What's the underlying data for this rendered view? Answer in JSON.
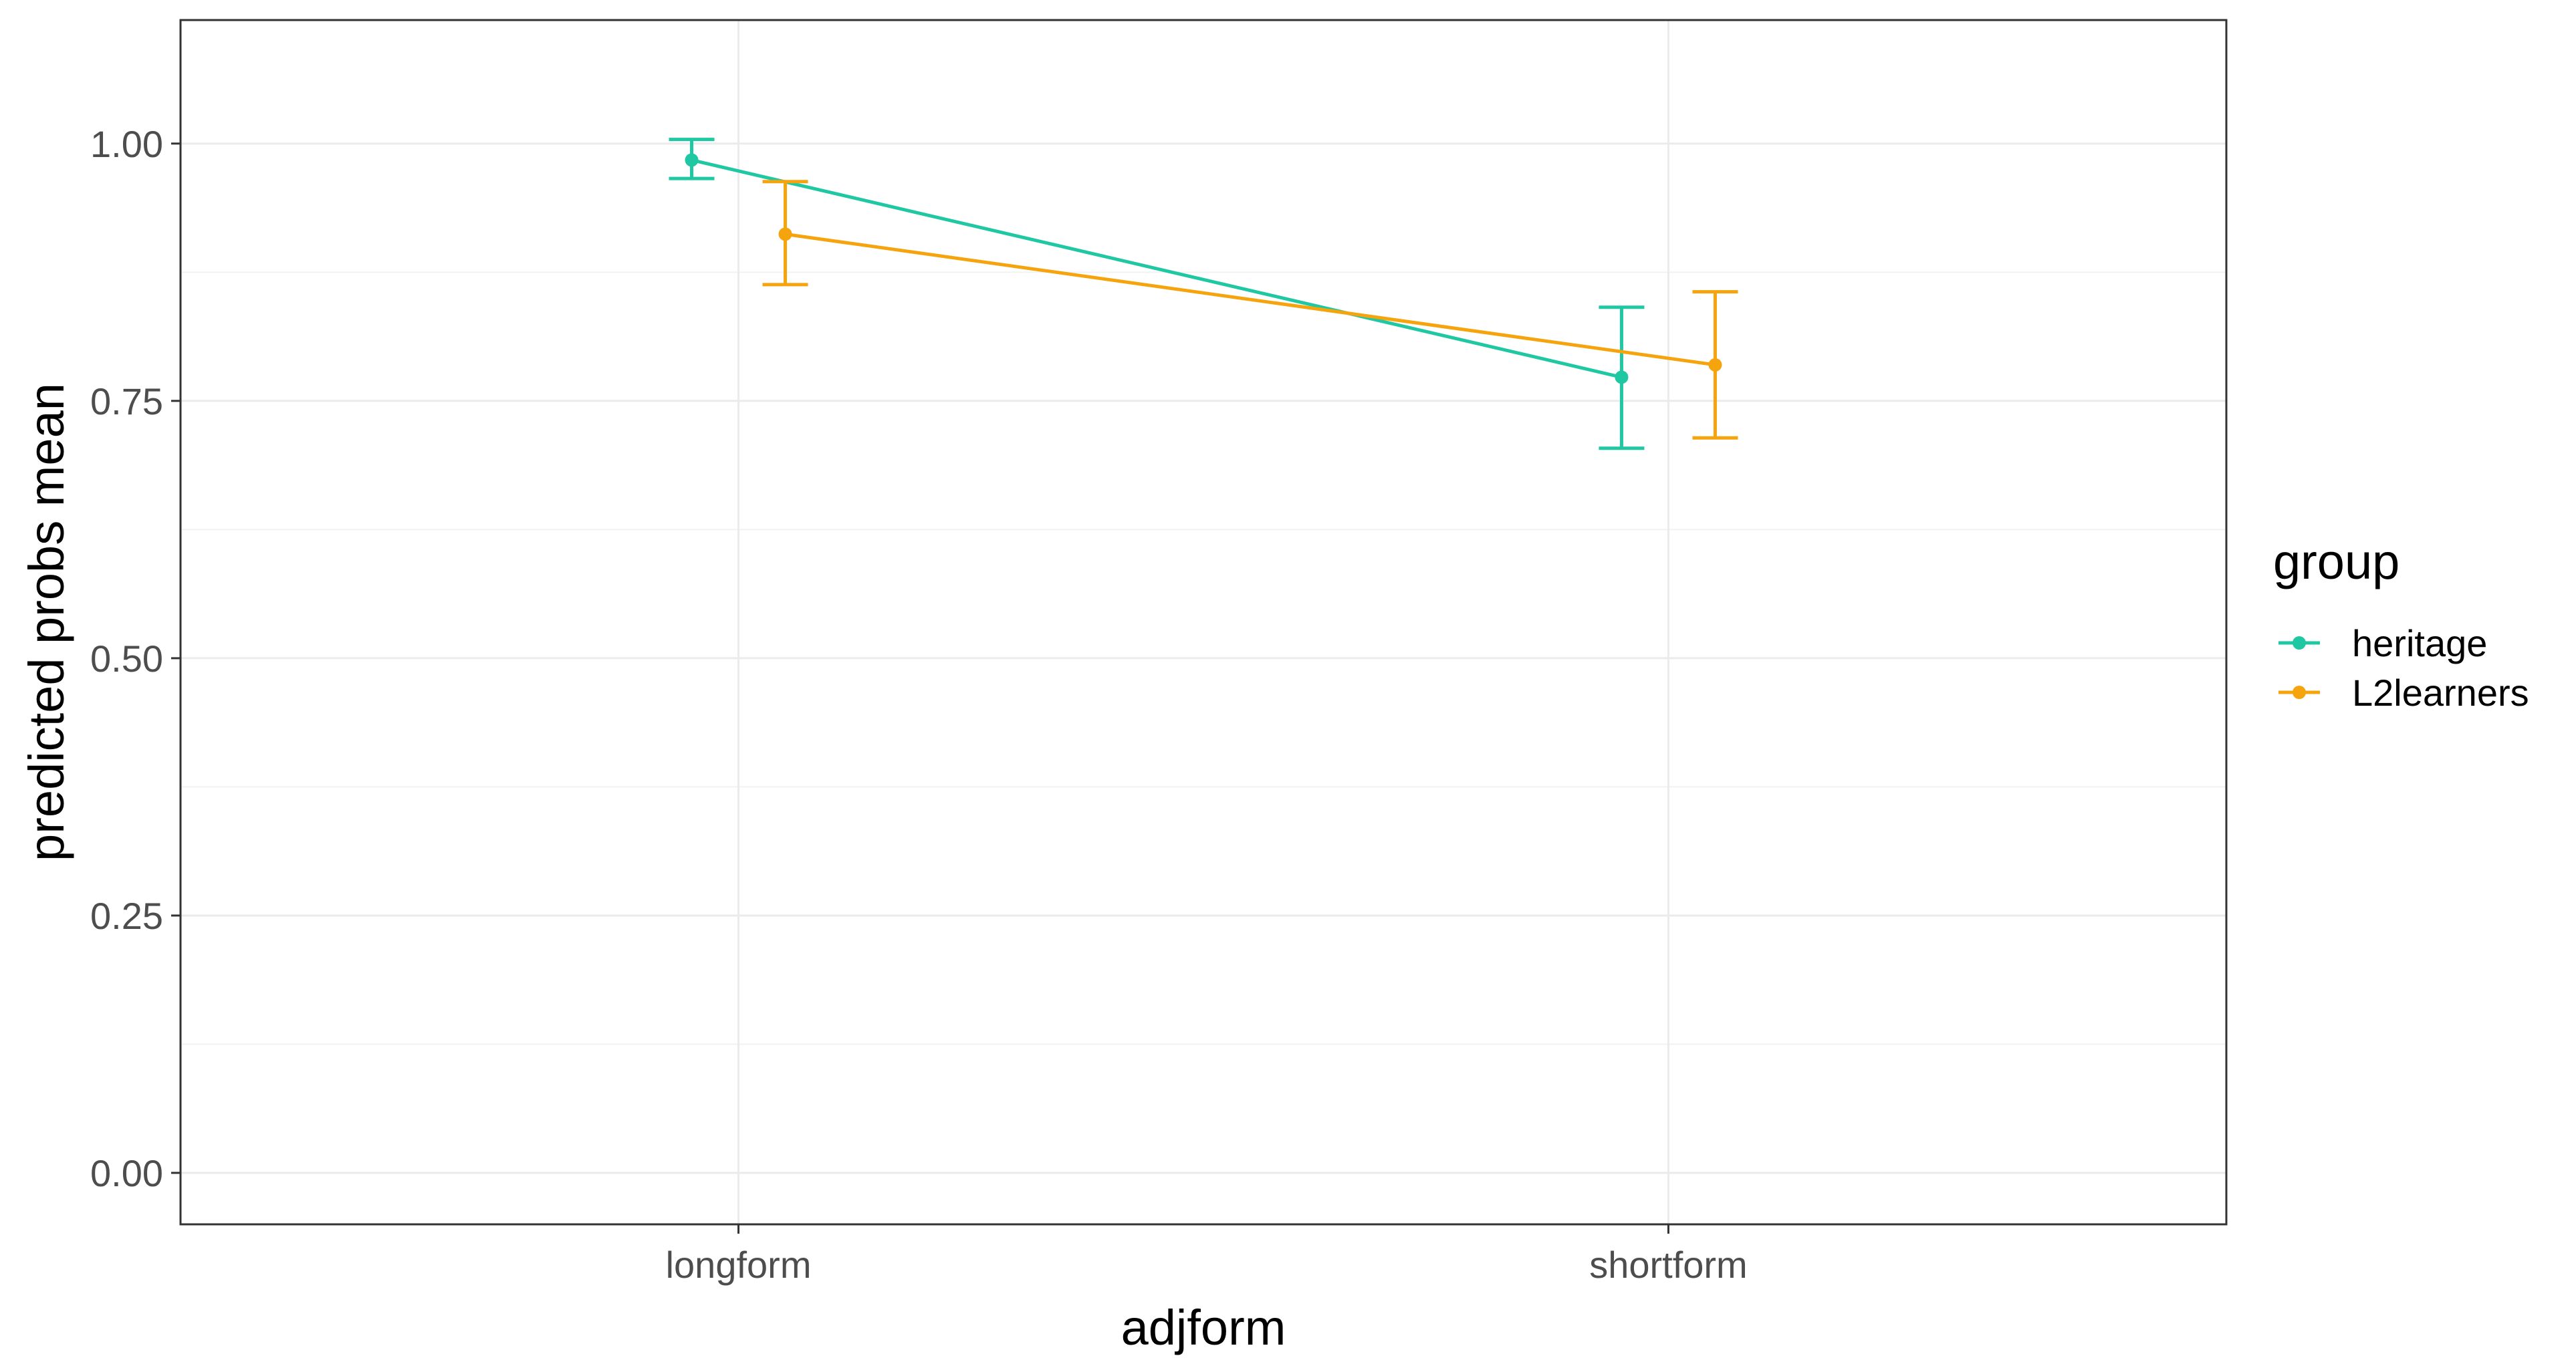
{
  "chart_data": {
    "type": "line",
    "title": "",
    "xlabel": "adjform",
    "ylabel": "predicted probs mean",
    "categories": [
      "longform",
      "shortform"
    ],
    "ylim": [
      -0.05,
      1.12
    ],
    "yticks": [
      0.0,
      0.25,
      0.5,
      0.75,
      1.0
    ],
    "ytick_labels": [
      "0.00",
      "0.25",
      "0.50",
      "0.75",
      "1.00"
    ],
    "grid": true,
    "legend": {
      "title": "group",
      "position": "right"
    },
    "series": [
      {
        "name": "heritage",
        "color": "#1fc7a3",
        "values": [
          0.984,
          0.773
        ],
        "lower": [
          0.966,
          0.704
        ],
        "upper": [
          1.004,
          0.841
        ]
      },
      {
        "name": "L2learners",
        "color": "#f5a40d",
        "values": [
          0.912,
          0.785
        ],
        "lower": [
          0.863,
          0.714
        ],
        "upper": [
          0.963,
          0.856
        ]
      }
    ]
  }
}
